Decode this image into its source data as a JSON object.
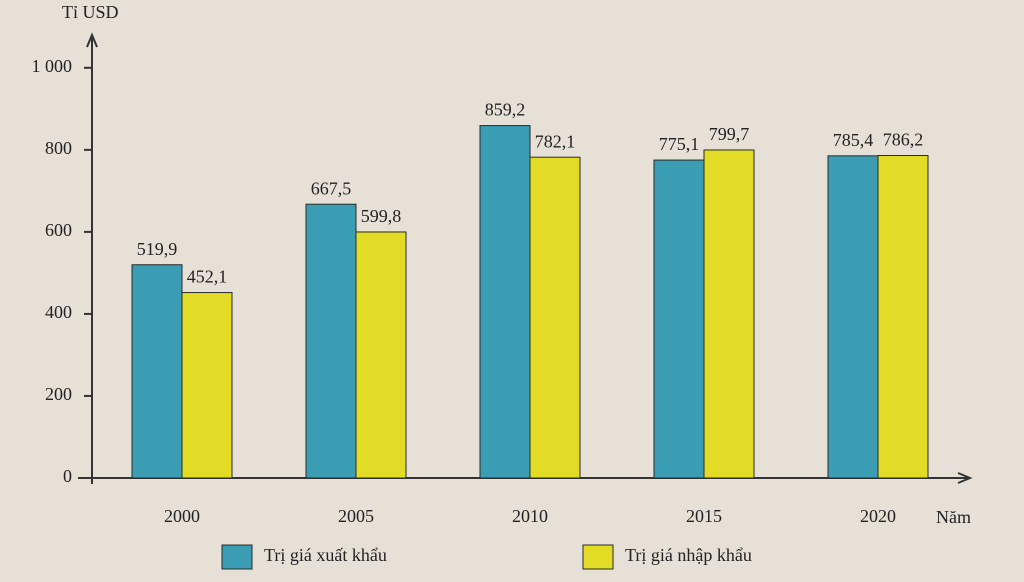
{
  "chart_data": {
    "type": "bar",
    "y_label": "Tỉ USD",
    "x_label": "Năm",
    "categories": [
      "2000",
      "2005",
      "2010",
      "2015",
      "2020"
    ],
    "series": [
      {
        "name": "Trị giá xuất khẩu",
        "color": "#3a9db3",
        "values": [
          519.9,
          667.5,
          859.2,
          775.1,
          785.4
        ],
        "value_labels": [
          "519,9",
          "667,5",
          "859,2",
          "775,1",
          "785,4"
        ]
      },
      {
        "name": "Trị giá nhập khẩu",
        "color": "#e3dc26",
        "values": [
          452.1,
          599.8,
          782.1,
          799.7,
          786.2
        ],
        "value_labels": [
          "452,1",
          "599,8",
          "782,1",
          "799,7",
          "786,2"
        ]
      }
    ],
    "ylim": [
      0,
      1080
    ],
    "yticks": [
      0,
      200,
      400,
      600,
      800,
      {
        "value": 1000,
        "label": "1 000"
      }
    ],
    "legend": "bottom"
  }
}
